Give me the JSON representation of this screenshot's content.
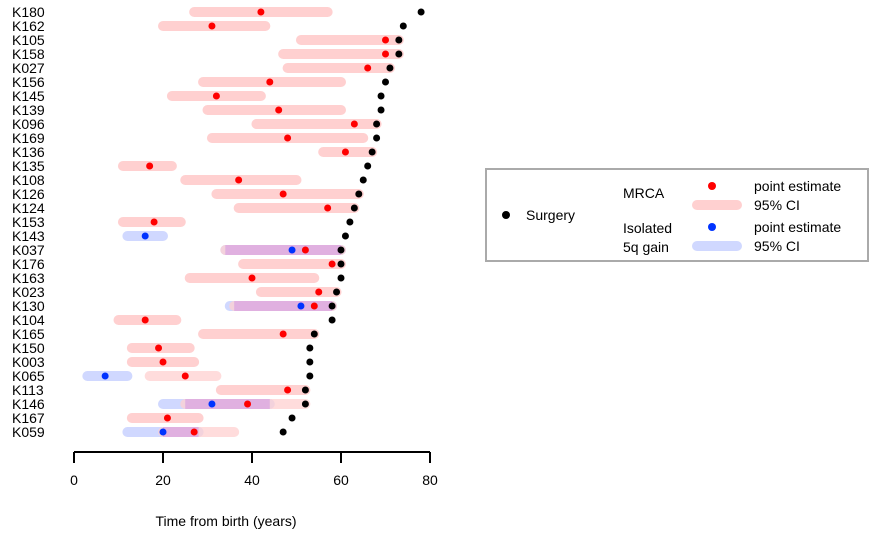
{
  "chart_data": {
    "type": "interval-dot",
    "xlabel": "Time from birth (years)",
    "xlim": [
      0,
      80
    ],
    "xticks": [
      0,
      20,
      40,
      60,
      80
    ],
    "grid": false,
    "legend_position": "right",
    "colors": {
      "surgery": "#000000",
      "mrca_point": "#ff0000",
      "mrca_ci": "#ffd0d0",
      "gain_point": "#0033ff",
      "gain_ci": "#d0d8ff",
      "overlap_ci": "#e0b0e0"
    },
    "legend": {
      "surgery": "Surgery",
      "mrca_title": "MRCA",
      "gain_title_line1": "Isolated",
      "gain_title_line2": "5q gain",
      "point_estimate": "point estimate",
      "ci": "95% CI"
    },
    "samples": [
      {
        "id": "K180",
        "surgery": 78,
        "mrca": [
          42,
          27,
          57
        ]
      },
      {
        "id": "K162",
        "surgery": 74,
        "mrca": [
          31,
          20,
          43
        ]
      },
      {
        "id": "K105",
        "surgery": 73,
        "mrca": [
          70,
          51,
          73
        ]
      },
      {
        "id": "K158",
        "surgery": 73,
        "mrca": [
          70,
          47,
          73
        ]
      },
      {
        "id": "K027",
        "surgery": 71,
        "mrca": [
          66,
          48,
          71
        ]
      },
      {
        "id": "K156",
        "surgery": 70,
        "mrca": [
          44,
          29,
          60
        ]
      },
      {
        "id": "K145",
        "surgery": 69,
        "mrca": [
          32,
          22,
          42
        ]
      },
      {
        "id": "K139",
        "surgery": 69,
        "mrca": [
          46,
          30,
          60
        ]
      },
      {
        "id": "K096",
        "surgery": 68,
        "mrca": [
          63,
          41,
          68
        ]
      },
      {
        "id": "K169",
        "surgery": 68,
        "mrca": [
          48,
          31,
          65
        ]
      },
      {
        "id": "K136",
        "surgery": 67,
        "mrca": [
          61,
          56,
          67
        ]
      },
      {
        "id": "K135",
        "surgery": 66,
        "mrca": [
          17,
          11,
          22
        ]
      },
      {
        "id": "K108",
        "surgery": 65,
        "mrca": [
          37,
          25,
          50
        ]
      },
      {
        "id": "K126",
        "surgery": 64,
        "mrca": [
          47,
          32,
          64
        ]
      },
      {
        "id": "K124",
        "surgery": 63,
        "mrca": [
          57,
          37,
          63
        ]
      },
      {
        "id": "K153",
        "surgery": 62,
        "mrca": [
          18,
          11,
          24
        ]
      },
      {
        "id": "K143",
        "surgery": 61,
        "gain": [
          16,
          12,
          20
        ]
      },
      {
        "id": "K037",
        "surgery": 60,
        "mrca": [
          52,
          34,
          60
        ],
        "gain": [
          49,
          34,
          60
        ]
      },
      {
        "id": "K176",
        "surgery": 60,
        "mrca": [
          58,
          38,
          60
        ]
      },
      {
        "id": "K163",
        "surgery": 60,
        "mrca": [
          40,
          26,
          54
        ]
      },
      {
        "id": "K023",
        "surgery": 59,
        "mrca": [
          55,
          42,
          59
        ]
      },
      {
        "id": "K130",
        "surgery": 58,
        "mrca": [
          54,
          36,
          58
        ],
        "gain": [
          51,
          35,
          58
        ]
      },
      {
        "id": "K104",
        "surgery": 58,
        "mrca": [
          16,
          10,
          23
        ]
      },
      {
        "id": "K165",
        "surgery": 54,
        "mrca": [
          47,
          29,
          54
        ]
      },
      {
        "id": "K150",
        "surgery": 53,
        "mrca": [
          19,
          13,
          26
        ]
      },
      {
        "id": "K003",
        "surgery": 53,
        "mrca": [
          20,
          13,
          27
        ]
      },
      {
        "id": "K065",
        "surgery": 53,
        "mrca": [
          25,
          17,
          32
        ],
        "gain": [
          7,
          3,
          12
        ]
      },
      {
        "id": "K113",
        "surgery": 52,
        "mrca": [
          48,
          33,
          52
        ]
      },
      {
        "id": "K146",
        "surgery": 52,
        "mrca": [
          39,
          25,
          52
        ],
        "gain": [
          31,
          20,
          44
        ]
      },
      {
        "id": "K167",
        "surgery": 49,
        "mrca": [
          21,
          13,
          28
        ]
      },
      {
        "id": "K059",
        "surgery": 47,
        "mrca": [
          27,
          20,
          36
        ],
        "gain": [
          20,
          12,
          28
        ]
      }
    ]
  }
}
